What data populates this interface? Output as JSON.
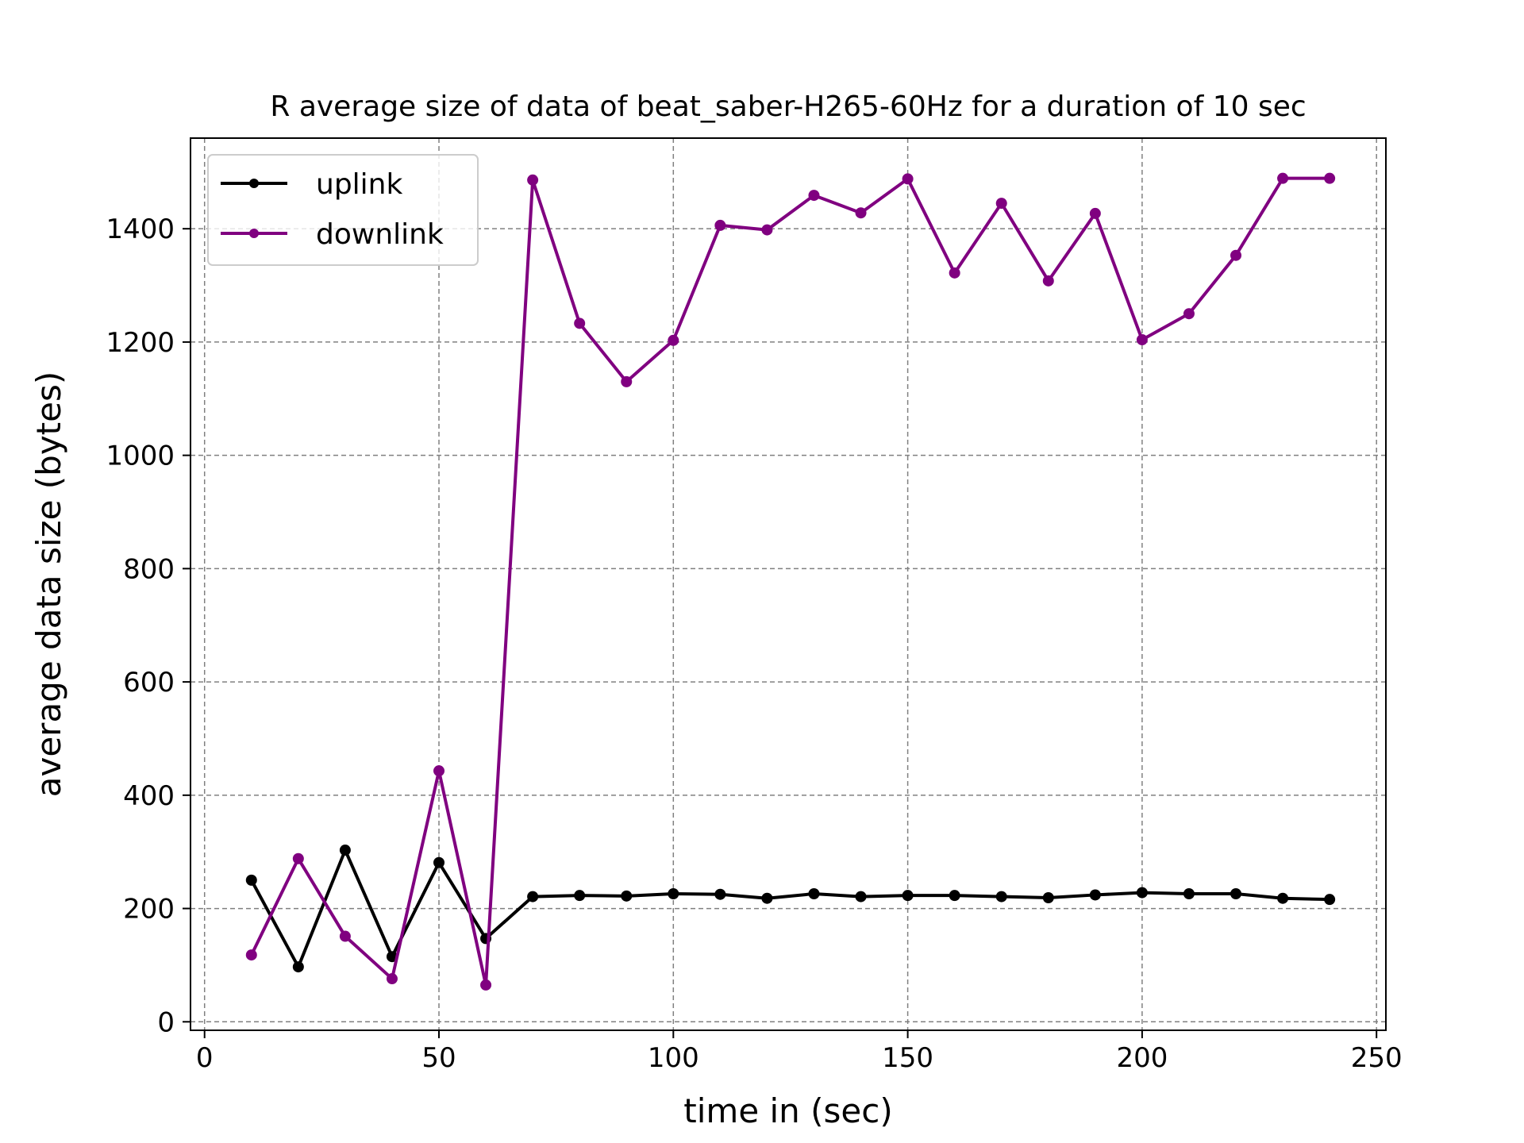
{
  "chart_data": {
    "type": "line",
    "title": "R average size of data of beat_saber-H265-60Hz for a duration of 10 sec",
    "xlabel": "time in (sec)",
    "ylabel": "average data size (bytes)",
    "xlim": [
      -3,
      252
    ],
    "ylim": [
      -15,
      1560
    ],
    "xticks": [
      0,
      50,
      100,
      150,
      200,
      250
    ],
    "yticks": [
      0,
      200,
      400,
      600,
      800,
      1000,
      1200,
      1400
    ],
    "grid": true,
    "legend_position": "upper-left",
    "x": [
      10,
      20,
      30,
      40,
      50,
      60,
      70,
      80,
      90,
      100,
      110,
      120,
      130,
      140,
      150,
      160,
      170,
      180,
      190,
      200,
      210,
      220,
      230,
      240
    ],
    "series": [
      {
        "name": "uplink",
        "color": "#000000",
        "values": [
          250,
          97,
          303,
          115,
          281,
          147,
          221,
          223,
          222,
          226,
          225,
          218,
          226,
          221,
          223,
          223,
          221,
          219,
          224,
          228,
          226,
          226,
          218,
          216
        ]
      },
      {
        "name": "downlink",
        "color": "#800080",
        "values": [
          118,
          288,
          151,
          76,
          443,
          65,
          1486,
          1233,
          1130,
          1203,
          1406,
          1398,
          1459,
          1428,
          1488,
          1322,
          1445,
          1308,
          1427,
          1204,
          1250,
          1353,
          1489,
          1489
        ]
      }
    ]
  }
}
